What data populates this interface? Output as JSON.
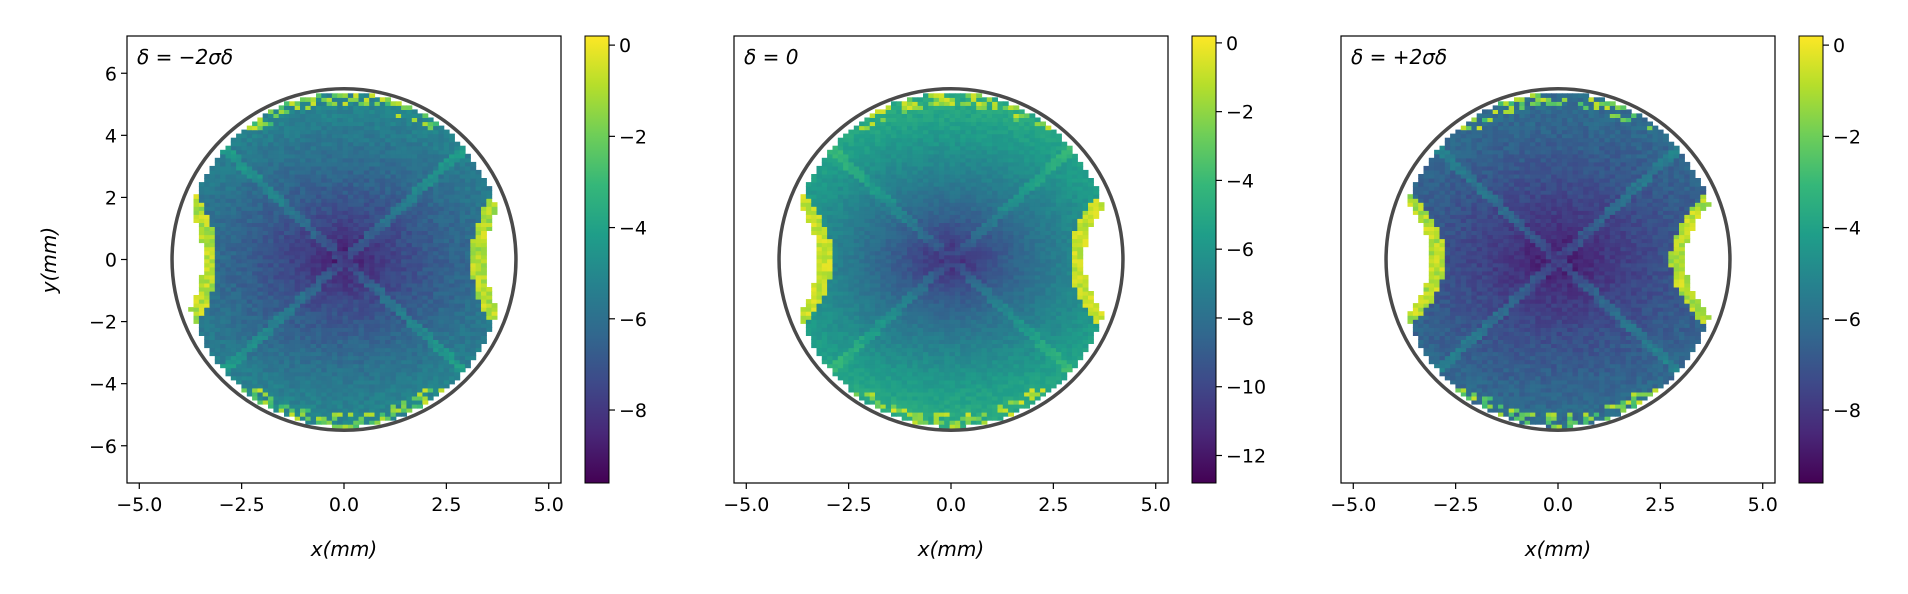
{
  "colormap": [
    "#440154",
    "#482878",
    "#3e4989",
    "#31688e",
    "#26828e",
    "#1f9e89",
    "#35b779",
    "#6ece58",
    "#b5de2b",
    "#fde725"
  ],
  "ring_color": "#4a4a4a",
  "chart_data": [
    {
      "type": "heatmap",
      "annotation": "δ = −2σδ",
      "xlabel": "x(mm)",
      "ylabel": "y(mm)",
      "xlim": [
        -5.3,
        5.3
      ],
      "ylim": [
        -7.2,
        7.2
      ],
      "xticks": [
        "−5.0",
        "−2.5",
        "0.0",
        "2.5",
        "5.0"
      ],
      "xtick_values": [
        -5,
        -2.5,
        0,
        2.5,
        5
      ],
      "yticks": [
        "−6",
        "−4",
        "−2",
        "0",
        "2",
        "4",
        "6"
      ],
      "ytick_values": [
        -6,
        -4,
        -2,
        0,
        2,
        4,
        6
      ],
      "ellipse": {
        "a": 4.0,
        "b": 5.5
      },
      "colorbar": {
        "min": -9.6,
        "max": 0.2,
        "ticks": [
          "0",
          "−2",
          "−4",
          "−6",
          "−8"
        ],
        "tick_values": [
          0,
          -2,
          -4,
          -6,
          -8
        ]
      },
      "center_value": -9.4,
      "edge_value": -5.2,
      "lobe_halfwidth": 0.55
    },
    {
      "type": "heatmap",
      "annotation": "δ = 0",
      "xlabel": "x(mm)",
      "ylabel": "",
      "xlim": [
        -5.3,
        5.3
      ],
      "ylim": [
        -7.2,
        7.2
      ],
      "xticks": [
        "−5.0",
        "−2.5",
        "0.0",
        "2.5",
        "5.0"
      ],
      "xtick_values": [
        -5,
        -2.5,
        0,
        2.5,
        5
      ],
      "yticks": [],
      "ytick_values": [],
      "ellipse": {
        "a": 4.0,
        "b": 5.5
      },
      "colorbar": {
        "min": -12.8,
        "max": 0.2,
        "ticks": [
          "0",
          "−2",
          "−4",
          "−6",
          "−8",
          "−10",
          "−12"
        ],
        "tick_values": [
          0,
          -2,
          -4,
          -6,
          -8,
          -10,
          -12
        ]
      },
      "center_value": -12.4,
      "edge_value": -5.0,
      "lobe_halfwidth": 0.75
    },
    {
      "type": "heatmap",
      "annotation": "δ = +2σδ",
      "xlabel": "x(mm)",
      "ylabel": "",
      "xlim": [
        -5.3,
        5.3
      ],
      "ylim": [
        -7.2,
        7.2
      ],
      "xticks": [
        "−5.0",
        "−2.5",
        "0.0",
        "2.5",
        "5.0"
      ],
      "xtick_values": [
        -5,
        -2.5,
        0,
        2.5,
        5
      ],
      "yticks": [],
      "ytick_values": [],
      "ellipse": {
        "a": 4.0,
        "b": 5.5
      },
      "colorbar": {
        "min": -9.6,
        "max": 0.2,
        "ticks": [
          "0",
          "−2",
          "−4",
          "−6",
          "−8"
        ],
        "tick_values": [
          0,
          -2,
          -4,
          -6,
          -8
        ]
      },
      "center_value": -9.4,
      "edge_value": -6.2,
      "lobe_halfwidth": 0.9
    }
  ]
}
